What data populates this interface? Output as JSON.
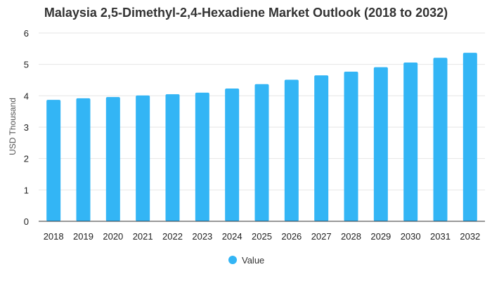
{
  "colors": {
    "bar": "#33b5f5",
    "grid": "#e6e6e6",
    "axis_line": "#333333"
  },
  "chart_data": {
    "type": "bar",
    "title": "Malaysia 2,5-Dimethyl-2,4-Hexadiene Market Outlook (2018 to 2032)",
    "xlabel": "",
    "ylabel": "USD Thousand",
    "ylim": [
      0,
      6
    ],
    "yticks": [
      0,
      1,
      2,
      3,
      4,
      5,
      6
    ],
    "grid": true,
    "legend_position": "bottom",
    "categories": [
      "2018",
      "2019",
      "2020",
      "2021",
      "2022",
      "2023",
      "2024",
      "2025",
      "2026",
      "2027",
      "2028",
      "2029",
      "2030",
      "2031",
      "2032"
    ],
    "series": [
      {
        "name": "Value",
        "values": [
          3.87,
          3.92,
          3.96,
          4.01,
          4.05,
          4.1,
          4.23,
          4.37,
          4.51,
          4.65,
          4.77,
          4.91,
          5.06,
          5.21,
          5.37
        ]
      }
    ]
  }
}
